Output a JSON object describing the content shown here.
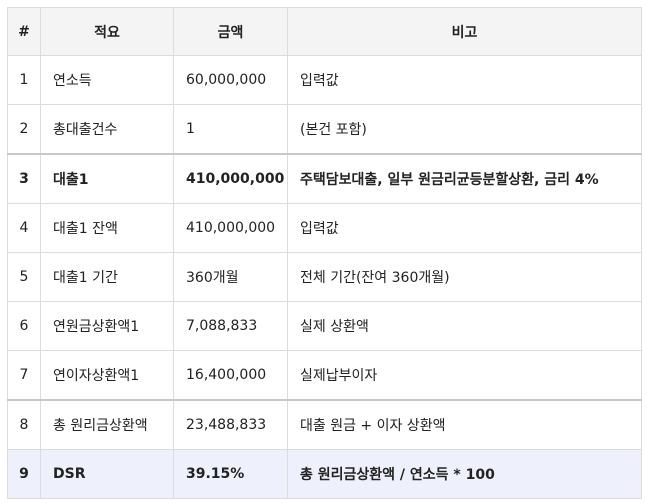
{
  "table": {
    "headers": [
      "#",
      "적요",
      "금액",
      "비고"
    ],
    "rows": [
      [
        "1",
        "연소득",
        "60,000,000",
        "입력값"
      ],
      [
        "2",
        "총대출건수",
        "1",
        "(본건 포함)"
      ],
      [
        "3",
        "대출1",
        "410,000,000",
        "주택담보대출, 일부 원금리균등분할상환, 금리 4%"
      ],
      [
        "4",
        "대출1 잔액",
        "410,000,000",
        "입력값"
      ],
      [
        "5",
        "대출1 기간",
        "360개월",
        "전체 기간(잔여 360개월)"
      ],
      [
        "6",
        "연원금상환액1",
        "7,088,833",
        "실제 상환액"
      ],
      [
        "7",
        "연이자상환액1",
        "16,400,000",
        "실제납부이자"
      ],
      [
        "8",
        "총 원리금상환액",
        "23,488,833",
        "대출 원금 + 이자 상환액"
      ],
      [
        "9",
        "DSR",
        "39.15%",
        "총 원리금상환액 / 연소득 * 100"
      ]
    ]
  }
}
